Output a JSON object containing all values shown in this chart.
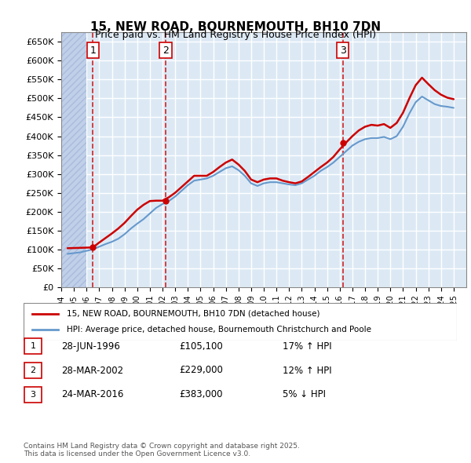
{
  "title": "15, NEW ROAD, BOURNEMOUTH, BH10 7DN",
  "subtitle": "Price paid vs. HM Land Registry's House Price Index (HPI)",
  "ylabel_prefix": "£",
  "ylim": [
    0,
    675000
  ],
  "yticks": [
    0,
    50000,
    100000,
    150000,
    200000,
    250000,
    300000,
    350000,
    400000,
    450000,
    500000,
    550000,
    600000,
    650000
  ],
  "xlim_start": 1994.0,
  "xlim_end": 2026.0,
  "background_color": "#ffffff",
  "plot_bg_color": "#dce9f5",
  "hatch_color": "#c0d0e8",
  "grid_color": "#ffffff",
  "sales": [
    {
      "year": 1996.5,
      "price": 105100,
      "label": "1"
    },
    {
      "year": 2002.25,
      "price": 229000,
      "label": "2"
    },
    {
      "year": 2016.25,
      "price": 383000,
      "label": "3"
    }
  ],
  "sale_line_color": "#cc0000",
  "hpi_line_color": "#6699cc",
  "legend_label_price": "15, NEW ROAD, BOURNEMOUTH, BH10 7DN (detached house)",
  "legend_label_hpi": "HPI: Average price, detached house, Bournemouth Christchurch and Poole",
  "table_rows": [
    {
      "num": "1",
      "date": "28-JUN-1996",
      "price": "£105,100",
      "hpi": "17% ↑ HPI"
    },
    {
      "num": "2",
      "date": "28-MAR-2002",
      "price": "£229,000",
      "hpi": "12% ↑ HPI"
    },
    {
      "num": "3",
      "date": "24-MAR-2016",
      "price": "£383,000",
      "hpi": "5% ↓ HPI"
    }
  ],
  "footnote": "Contains HM Land Registry data © Crown copyright and database right 2025.\nThis data is licensed under the Open Government Licence v3.0.",
  "hpi_data_x": [
    1994.5,
    1995.0,
    1995.5,
    1996.0,
    1996.5,
    1997.0,
    1997.5,
    1998.0,
    1998.5,
    1999.0,
    1999.5,
    2000.0,
    2000.5,
    2001.0,
    2001.5,
    2002.0,
    2002.5,
    2003.0,
    2003.5,
    2004.0,
    2004.5,
    2005.0,
    2005.5,
    2006.0,
    2006.5,
    2007.0,
    2007.5,
    2008.0,
    2008.5,
    2009.0,
    2009.5,
    2010.0,
    2010.5,
    2011.0,
    2011.5,
    2012.0,
    2012.5,
    2013.0,
    2013.5,
    2014.0,
    2014.5,
    2015.0,
    2015.5,
    2016.0,
    2016.5,
    2017.0,
    2017.5,
    2018.0,
    2018.5,
    2019.0,
    2019.5,
    2020.0,
    2020.5,
    2021.0,
    2021.5,
    2022.0,
    2022.5,
    2023.0,
    2023.5,
    2024.0,
    2024.5,
    2025.0
  ],
  "hpi_data_y": [
    88000,
    90000,
    92000,
    96000,
    100000,
    107000,
    114000,
    120000,
    128000,
    140000,
    155000,
    168000,
    180000,
    195000,
    210000,
    220000,
    228000,
    240000,
    255000,
    270000,
    282000,
    285000,
    288000,
    295000,
    305000,
    315000,
    320000,
    310000,
    295000,
    275000,
    268000,
    275000,
    278000,
    278000,
    275000,
    272000,
    270000,
    275000,
    285000,
    295000,
    308000,
    318000,
    330000,
    345000,
    360000,
    375000,
    385000,
    392000,
    395000,
    395000,
    398000,
    392000,
    400000,
    425000,
    460000,
    490000,
    505000,
    495000,
    485000,
    480000,
    478000,
    475000
  ],
  "price_data_x": [
    1994.5,
    1995.0,
    1995.5,
    1996.0,
    1996.5,
    1997.0,
    1997.5,
    1998.0,
    1998.5,
    1999.0,
    1999.5,
    2000.0,
    2000.5,
    2001.0,
    2001.5,
    2002.0,
    2002.5,
    2003.0,
    2003.5,
    2004.0,
    2004.5,
    2005.0,
    2005.5,
    2006.0,
    2006.5,
    2007.0,
    2007.5,
    2008.0,
    2008.5,
    2009.0,
    2009.5,
    2010.0,
    2010.5,
    2011.0,
    2011.5,
    2012.0,
    2012.5,
    2013.0,
    2013.5,
    2014.0,
    2014.5,
    2015.0,
    2015.5,
    2016.0,
    2016.5,
    2017.0,
    2017.5,
    2018.0,
    2018.5,
    2019.0,
    2019.5,
    2020.0,
    2020.5,
    2021.0,
    2021.5,
    2022.0,
    2022.5,
    2023.0,
    2023.5,
    2024.0,
    2024.5,
    2025.0
  ],
  "price_data_y": [
    103000,
    103500,
    104000,
    104500,
    105100,
    118000,
    130000,
    142000,
    155000,
    170000,
    188000,
    205000,
    218000,
    228000,
    229000,
    229000,
    238000,
    250000,
    265000,
    280000,
    295000,
    295000,
    295000,
    305000,
    318000,
    330000,
    338000,
    325000,
    308000,
    285000,
    278000,
    285000,
    288000,
    288000,
    282000,
    278000,
    275000,
    280000,
    292000,
    305000,
    318000,
    330000,
    345000,
    365000,
    383000,
    400000,
    415000,
    425000,
    430000,
    428000,
    432000,
    422000,
    435000,
    462000,
    500000,
    535000,
    555000,
    538000,
    522000,
    510000,
    502000,
    498000
  ]
}
